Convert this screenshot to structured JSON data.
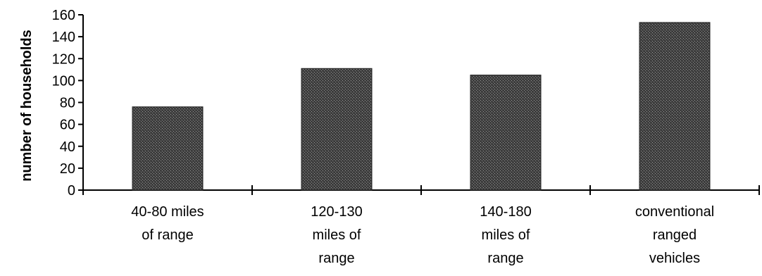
{
  "chart_data": {
    "type": "bar",
    "categories": [
      "40-80 miles\nof range",
      "120-130\nmiles of\nrange",
      "140-180\nmiles of\nrange",
      "conventional\nranged\nvehicles"
    ],
    "values": [
      76,
      111,
      105,
      153
    ],
    "title": "",
    "xlabel": "",
    "ylabel": "number of households",
    "ylim": [
      0,
      160
    ],
    "yticks": [
      0,
      20,
      40,
      60,
      80,
      100,
      120,
      140,
      160
    ],
    "grid": false,
    "bar_color": "#4a4a4a"
  }
}
